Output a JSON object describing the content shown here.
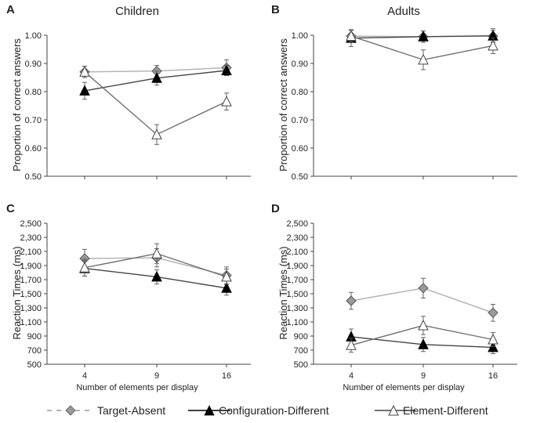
{
  "panels": [
    {
      "letter": "A",
      "title": "Children"
    },
    {
      "letter": "B",
      "title": "Adults"
    },
    {
      "letter": "C",
      "title": ""
    },
    {
      "letter": "D",
      "title": ""
    }
  ],
  "legend": {
    "items": [
      {
        "label": "Target-Absent"
      },
      {
        "label": "Configuration-Different"
      },
      {
        "label": "Element-Different"
      }
    ]
  },
  "colors": {
    "target_absent_line": "#b0b0b0",
    "target_absent_marker": "#9a9a9a",
    "config_line": "#444444",
    "config_marker": "#000000",
    "element_line": "#707070",
    "element_marker": "#ffffff",
    "axis": "#444444"
  },
  "chart_data": [
    {
      "id": "A",
      "type": "line",
      "title": "Children",
      "xlabel": "",
      "ylabel": "Proportion of correct answers",
      "categories": [
        "4",
        "9",
        "16"
      ],
      "ylim": [
        0.5,
        1.0
      ],
      "yticks": [
        "0.50",
        "0.60",
        "0.70",
        "0.80",
        "0.90",
        "1.00"
      ],
      "show_xtick_labels": false,
      "series": [
        {
          "name": "Target-Absent",
          "values": [
            0.87,
            0.873,
            0.885
          ],
          "errors": [
            0.02,
            0.02,
            0.028
          ]
        },
        {
          "name": "Configuration-Different",
          "values": [
            0.803,
            0.848,
            0.875
          ],
          "errors": [
            0.03,
            0.025,
            0.017
          ]
        },
        {
          "name": "Element-Different",
          "values": [
            0.87,
            0.648,
            0.765
          ],
          "errors": [
            0.02,
            0.035,
            0.03
          ]
        }
      ]
    },
    {
      "id": "B",
      "type": "line",
      "title": "Adults",
      "xlabel": "",
      "ylabel": "Proportion of correct answers",
      "categories": [
        "4",
        "9",
        "16"
      ],
      "ylim": [
        0.5,
        1.0
      ],
      "yticks": [
        "0.50",
        "0.60",
        "0.70",
        "0.80",
        "0.90",
        "1.00"
      ],
      "show_xtick_labels": false,
      "series": [
        {
          "name": "Target-Absent",
          "values": [
            0.997,
            0.995,
            0.997
          ],
          "errors": [
            0.02,
            0.02,
            0.02
          ]
        },
        {
          "name": "Configuration-Different",
          "values": [
            0.99,
            0.995,
            0.998
          ],
          "errors": [
            0.03,
            0.02,
            0.025
          ]
        },
        {
          "name": "Element-Different",
          "values": [
            0.997,
            0.913,
            0.963
          ],
          "errors": [
            0.02,
            0.035,
            0.028
          ]
        }
      ]
    },
    {
      "id": "C",
      "type": "line",
      "title": "",
      "xlabel": "Number of elements per display",
      "ylabel": "Reaction Times (ms)",
      "categories": [
        "4",
        "9",
        "16"
      ],
      "ylim": [
        500,
        2500
      ],
      "yticks": [
        "500",
        "700",
        "900",
        "1,100",
        "1,300",
        "1,500",
        "1,700",
        "1,900",
        "2,100",
        "2,300",
        "2,500"
      ],
      "show_xtick_labels": true,
      "series": [
        {
          "name": "Target-Absent",
          "values": [
            2000,
            2010,
            1760
          ],
          "errors": [
            130,
            130,
            120
          ]
        },
        {
          "name": "Configuration-Different",
          "values": [
            1860,
            1740,
            1580
          ],
          "errors": [
            110,
            100,
            100
          ]
        },
        {
          "name": "Element-Different",
          "values": [
            1870,
            2070,
            1740
          ],
          "errors": [
            120,
            140,
            110
          ]
        }
      ]
    },
    {
      "id": "D",
      "type": "line",
      "title": "",
      "xlabel": "Number of elements per display",
      "ylabel": "Reaction Times (ms)",
      "categories": [
        "4",
        "9",
        "16"
      ],
      "ylim": [
        500,
        2500
      ],
      "yticks": [
        "500",
        "700",
        "900",
        "1,100",
        "1,300",
        "1,500",
        "1,700",
        "1,900",
        "2,100",
        "2,300",
        "2,500"
      ],
      "show_xtick_labels": true,
      "series": [
        {
          "name": "Target-Absent",
          "values": [
            1400,
            1580,
            1230
          ],
          "errors": [
            120,
            140,
            120
          ]
        },
        {
          "name": "Configuration-Different",
          "values": [
            890,
            780,
            740
          ],
          "errors": [
            110,
            100,
            90
          ]
        },
        {
          "name": "Element-Different",
          "values": [
            770,
            1050,
            850
          ],
          "errors": [
            100,
            130,
            100
          ]
        }
      ]
    }
  ]
}
